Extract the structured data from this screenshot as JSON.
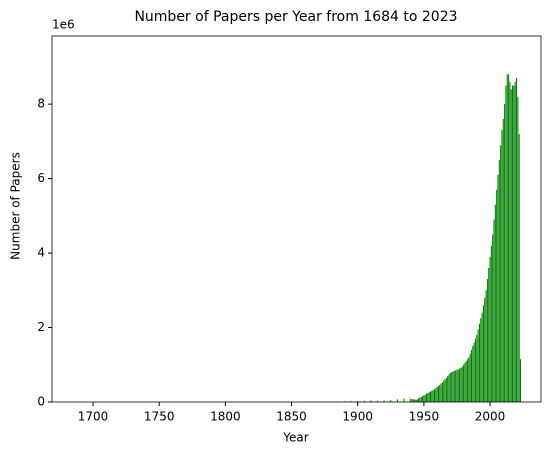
{
  "chart_data": {
    "type": "bar",
    "title": "Number of Papers per Year from 1684 to 2023",
    "x_label": "Year",
    "y_label": "Number of Papers",
    "y_offset_label": "1e6",
    "color": "#008000",
    "x": [
      1860,
      1865,
      1870,
      1875,
      1880,
      1885,
      1890,
      1895,
      1900,
      1905,
      1910,
      1915,
      1920,
      1925,
      1930,
      1935,
      1940,
      1941,
      1942,
      1943,
      1944,
      1945,
      1946,
      1947,
      1948,
      1949,
      1950,
      1951,
      1952,
      1953,
      1954,
      1955,
      1956,
      1957,
      1958,
      1959,
      1960,
      1961,
      1962,
      1963,
      1964,
      1965,
      1966,
      1967,
      1968,
      1969,
      1970,
      1971,
      1972,
      1973,
      1974,
      1975,
      1976,
      1977,
      1978,
      1979,
      1980,
      1981,
      1982,
      1983,
      1984,
      1985,
      1986,
      1987,
      1988,
      1989,
      1990,
      1991,
      1992,
      1993,
      1994,
      1995,
      1996,
      1997,
      1998,
      1999,
      2000,
      2001,
      2002,
      2003,
      2004,
      2005,
      2006,
      2007,
      2008,
      2009,
      2010,
      2011,
      2012,
      2013,
      2014,
      2015,
      2016,
      2017,
      2018,
      2019,
      2020,
      2021,
      2022,
      2023
    ],
    "values": [
      0.005,
      0.01,
      0.01,
      0.012,
      0.015,
      0.018,
      0.02,
      0.025,
      0.03,
      0.035,
      0.04,
      0.035,
      0.04,
      0.05,
      0.07,
      0.09,
      0.09,
      0.08,
      0.07,
      0.07,
      0.06,
      0.07,
      0.1,
      0.12,
      0.14,
      0.16,
      0.18,
      0.2,
      0.22,
      0.24,
      0.26,
      0.28,
      0.3,
      0.32,
      0.34,
      0.37,
      0.4,
      0.43,
      0.46,
      0.5,
      0.53,
      0.57,
      0.61,
      0.65,
      0.7,
      0.74,
      0.78,
      0.8,
      0.82,
      0.84,
      0.85,
      0.86,
      0.88,
      0.9,
      0.92,
      0.95,
      1.0,
      1.05,
      1.1,
      1.15,
      1.2,
      1.3,
      1.4,
      1.5,
      1.6,
      1.7,
      1.8,
      1.95,
      2.1,
      2.25,
      2.4,
      2.6,
      2.8,
      3.0,
      3.3,
      3.6,
      3.9,
      4.2,
      4.5,
      4.9,
      5.3,
      5.7,
      6.1,
      6.5,
      6.9,
      7.3,
      7.6,
      8.0,
      8.5,
      8.8,
      8.8,
      8.6,
      8.4,
      8.5,
      8.5,
      8.6,
      8.7,
      8.2,
      7.2,
      1.15
    ],
    "xlim": [
      1669,
      2038.5
    ],
    "xticks": [
      1700,
      1750,
      1800,
      1850,
      1900,
      1950,
      2000
    ],
    "ylim": [
      0,
      9.83
    ],
    "yticks": [
      0,
      2,
      4,
      6,
      8
    ]
  }
}
